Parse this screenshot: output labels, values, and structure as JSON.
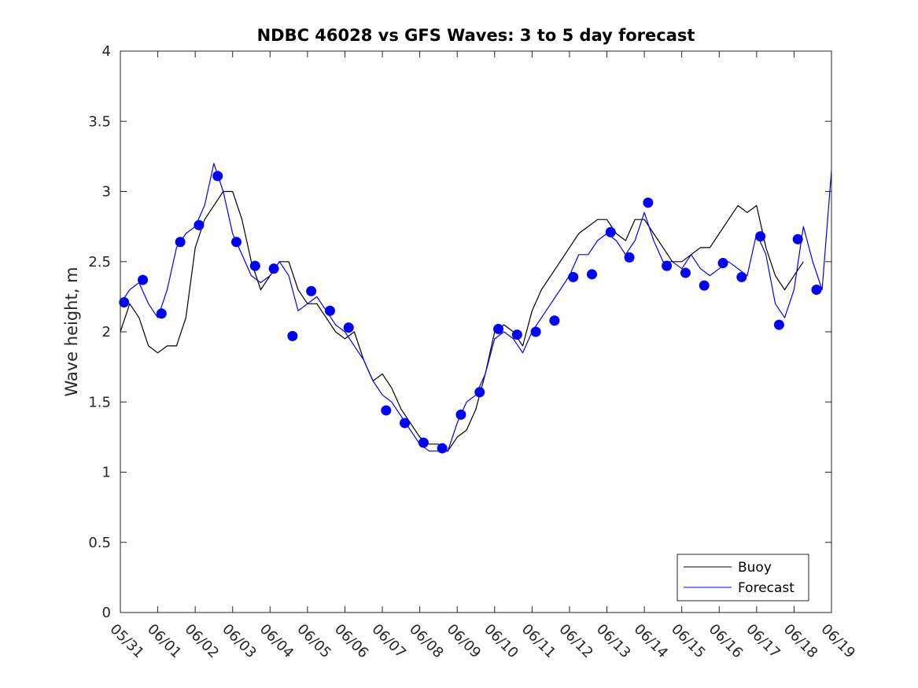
{
  "chart_data": {
    "type": "line",
    "title": "NDBC 46028 vs GFS Waves: 3 to 5 day forecast",
    "xlabel": "",
    "ylabel": "Wave height, m",
    "ylim": [
      0,
      4
    ],
    "xlim_days": [
      0,
      19
    ],
    "ytick_labels": [
      "0",
      "0.5",
      "1",
      "1.5",
      "2",
      "2.5",
      "3",
      "3.5",
      "4"
    ],
    "xtick_labels": [
      "05/31",
      "06/01",
      "06/02",
      "06/03",
      "06/04",
      "06/05",
      "06/06",
      "06/07",
      "06/08",
      "06/09",
      "06/10",
      "06/11",
      "06/12",
      "06/13",
      "06/14",
      "06/15",
      "06/16",
      "06/17",
      "06/18",
      "06/19"
    ],
    "grid": false,
    "legend_placement": "bottom-right",
    "legend": [
      "Buoy",
      "Forecast"
    ],
    "colors": {
      "buoy": "#000000",
      "forecast": "#0000ff"
    },
    "series": [
      {
        "name": "Buoy",
        "x": [
          0.0,
          0.25,
          0.5,
          0.75,
          1.0,
          1.25,
          1.5,
          1.75,
          2.0,
          2.25,
          2.5,
          2.75,
          3.0,
          3.25,
          3.5,
          3.75,
          4.0,
          4.25,
          4.5,
          4.75,
          5.0,
          5.25,
          5.5,
          5.75,
          6.0,
          6.25,
          6.5,
          6.75,
          7.0,
          7.25,
          7.5,
          7.75,
          8.0,
          8.25,
          8.5,
          8.75,
          9.0,
          9.25,
          9.5,
          9.75,
          10.0,
          10.25,
          10.5,
          10.75,
          11.0,
          11.25,
          11.5,
          11.75,
          12.0,
          12.25,
          12.5,
          12.75,
          13.0,
          13.25,
          13.5,
          13.75,
          14.0,
          14.25,
          14.5,
          14.75,
          15.0,
          15.25,
          15.5,
          15.75,
          16.0,
          16.25,
          16.5,
          16.75,
          17.0,
          17.25,
          17.5,
          17.75,
          18.0,
          18.25
        ],
        "values": [
          2.0,
          2.2,
          2.1,
          1.9,
          1.85,
          1.9,
          1.9,
          2.1,
          2.6,
          2.8,
          2.9,
          3.0,
          3.0,
          2.8,
          2.5,
          2.3,
          2.4,
          2.5,
          2.5,
          2.3,
          2.2,
          2.2,
          2.1,
          2.0,
          1.95,
          2.0,
          1.8,
          1.65,
          1.7,
          1.6,
          1.45,
          1.35,
          1.25,
          1.2,
          1.2,
          1.15,
          1.25,
          1.3,
          1.45,
          1.7,
          2.0,
          2.05,
          2.0,
          1.9,
          2.15,
          2.3,
          2.4,
          2.5,
          2.6,
          2.7,
          2.75,
          2.8,
          2.8,
          2.7,
          2.65,
          2.8,
          2.8,
          2.7,
          2.6,
          2.5,
          2.5,
          2.55,
          2.6,
          2.6,
          2.7,
          2.8,
          2.9,
          2.85,
          2.9,
          2.6,
          2.4,
          2.3,
          2.4,
          2.5
        ]
      },
      {
        "name": "Forecast",
        "x": [
          0.0,
          0.25,
          0.5,
          0.75,
          1.0,
          1.25,
          1.5,
          1.75,
          2.0,
          2.25,
          2.5,
          2.75,
          3.0,
          3.25,
          3.5,
          3.75,
          4.0,
          4.25,
          4.5,
          4.75,
          5.0,
          5.25,
          5.5,
          5.75,
          6.0,
          6.25,
          6.5,
          6.75,
          7.0,
          7.25,
          7.5,
          7.75,
          8.0,
          8.25,
          8.5,
          8.75,
          9.0,
          9.25,
          9.5,
          9.75,
          10.0,
          10.25,
          10.5,
          10.75,
          11.0,
          11.25,
          11.5,
          11.75,
          12.0,
          12.25,
          12.5,
          12.75,
          13.0,
          13.25,
          13.5,
          13.75,
          14.0,
          14.25,
          14.5,
          14.75,
          15.0,
          15.25,
          15.5,
          15.75,
          16.0,
          16.25,
          16.5,
          16.75,
          17.0,
          17.25,
          17.5,
          17.75,
          18.0,
          18.25,
          18.5,
          18.75,
          19.0
        ],
        "values": [
          2.2,
          2.3,
          2.35,
          2.2,
          2.1,
          2.3,
          2.6,
          2.7,
          2.75,
          2.9,
          3.2,
          3.0,
          2.7,
          2.55,
          2.4,
          2.35,
          2.4,
          2.5,
          2.4,
          2.15,
          2.2,
          2.25,
          2.15,
          2.05,
          2.0,
          1.9,
          1.8,
          1.65,
          1.55,
          1.5,
          1.4,
          1.3,
          1.2,
          1.15,
          1.15,
          1.15,
          1.35,
          1.5,
          1.55,
          1.7,
          1.95,
          2.0,
          1.95,
          1.85,
          2.0,
          2.1,
          2.2,
          2.3,
          2.4,
          2.55,
          2.55,
          2.65,
          2.7,
          2.65,
          2.55,
          2.65,
          2.85,
          2.65,
          2.5,
          2.5,
          2.45,
          2.55,
          2.45,
          2.4,
          2.45,
          2.5,
          2.45,
          2.4,
          2.7,
          2.55,
          2.2,
          2.1,
          2.3,
          2.75,
          2.5,
          2.3,
          3.15
        ]
      },
      {
        "name": "Forecast",
        "marker": "circle",
        "x": [
          0.1,
          0.6,
          1.1,
          1.6,
          2.1,
          2.6,
          3.1,
          3.6,
          4.1,
          4.6,
          5.1,
          5.6,
          6.1,
          7.1,
          7.6,
          8.1,
          8.6,
          9.1,
          9.6,
          10.1,
          10.6,
          11.1,
          11.6,
          12.1,
          12.6,
          13.1,
          13.6,
          14.1,
          14.6,
          15.1,
          15.6,
          16.1,
          16.6,
          17.1,
          17.6,
          18.1,
          18.6
        ],
        "values": [
          2.21,
          2.37,
          2.13,
          2.64,
          2.76,
          3.11,
          2.64,
          2.47,
          2.45,
          1.97,
          2.29,
          2.15,
          2.03,
          1.44,
          1.35,
          1.21,
          1.17,
          1.41,
          1.57,
          2.02,
          1.98,
          2.0,
          2.08,
          2.39,
          2.41,
          2.71,
          2.53,
          2.92,
          2.47,
          2.42,
          2.33,
          2.49,
          2.39,
          2.68,
          2.05,
          2.66,
          2.3
        ]
      }
    ]
  }
}
